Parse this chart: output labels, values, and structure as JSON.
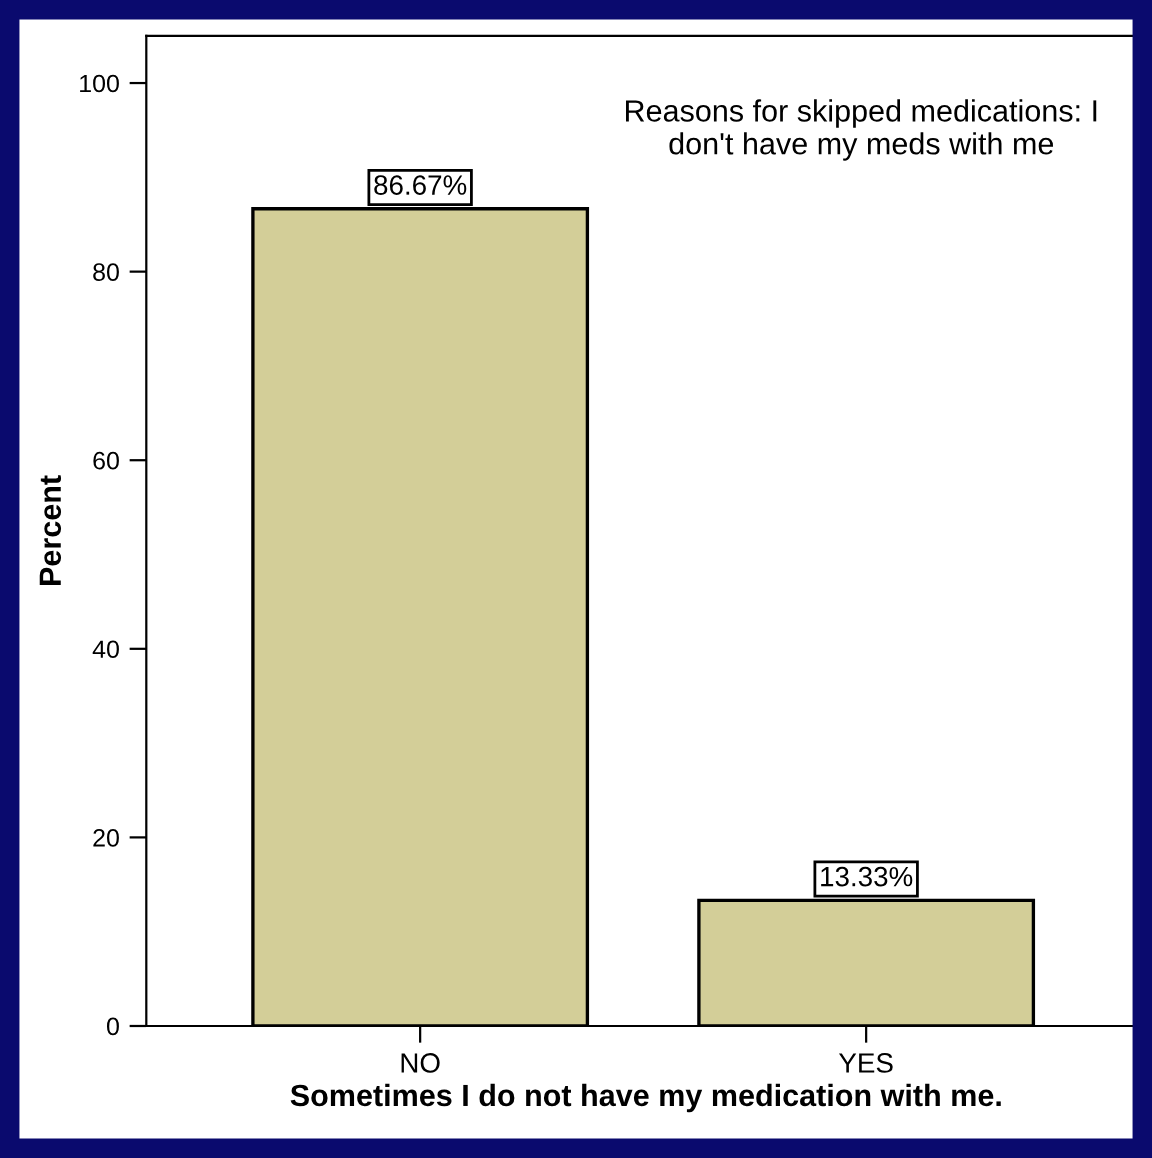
{
  "chart_data": {
    "type": "bar",
    "title": "Reasons for skipped medications: I don't have my meds with me",
    "xlabel": "Sometimes I do not have my medication with me.",
    "ylabel": "Percent",
    "categories": [
      "NO",
      "YES"
    ],
    "values": [
      86.67,
      13.33
    ],
    "value_labels": [
      "86.67%",
      "13.33%"
    ],
    "color": "#d3ce98",
    "ylim": [
      0,
      105
    ],
    "yticks": [
      0,
      20,
      40,
      60,
      80,
      100
    ],
    "grid": false,
    "legend": false
  }
}
